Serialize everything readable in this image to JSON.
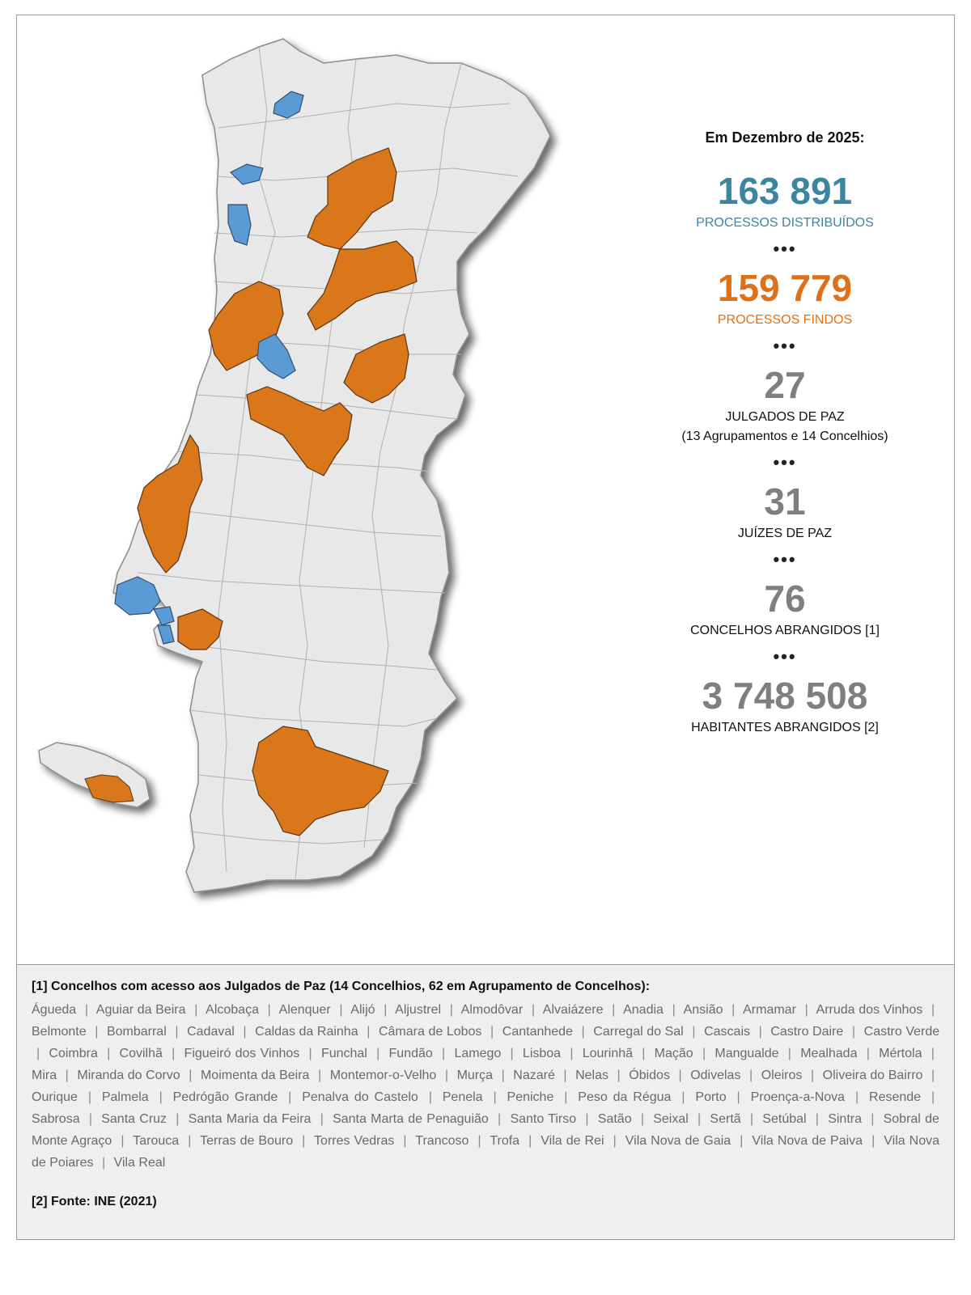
{
  "stats": {
    "intro": "Em Dezembro de 2025:",
    "items": [
      {
        "value": "163 891",
        "label": "PROCESSOS DISTRIBUÍDOS",
        "color": "#3b85a1"
      },
      {
        "value": "159 779",
        "label": "PROCESSOS FINDOS",
        "color": "#e07018"
      },
      {
        "value": "27",
        "label": "JULGADOS DE PAZ",
        "sublabel": "(13 Agrupamentos e 14 Concelhios)",
        "color": "#7f7f7f"
      },
      {
        "value": "31",
        "label": "JUÍZES DE PAZ",
        "color": "#7f7f7f"
      },
      {
        "value": "76",
        "label": "CONCELHOS ABRANGIDOS [1]",
        "color": "#7f7f7f"
      },
      {
        "value": "3 748 508",
        "label": "HABITANTES ABRANGIDOS [2]",
        "color": "#7f7f7f"
      }
    ],
    "separator": "•••"
  },
  "map": {
    "colors": {
      "orange": "#d9771a",
      "blue": "#5b9bd5",
      "base": "#e8e8e8",
      "border": "#8c8c8c"
    }
  },
  "notes": {
    "note1_title": "[1] Concelhos com acesso aos Julgados de Paz (14 Concelhios, 62 em Agrupamento de Concelhos):",
    "concelhos": [
      "Águeda",
      "Aguiar da Beira",
      "Alcobaça",
      "Alenquer",
      "Alijó",
      "Aljustrel",
      "Almodôvar",
      "Alvaiázere",
      "Anadia",
      "Ansião",
      "Armamar",
      "Arruda dos Vinhos",
      "Belmonte",
      "Bombarral",
      "Cadaval",
      "Caldas da Rainha",
      "Câmara de Lobos",
      "Cantanhede",
      "Carregal do Sal",
      "Cascais",
      "Castro Daire",
      "Castro Verde",
      "Coimbra",
      "Covilhã",
      "Figueiró dos Vinhos",
      "Funchal",
      "Fundão",
      "Lamego",
      "Lisboa",
      "Lourinhã",
      "Mação",
      "Mangualde",
      "Mealhada",
      "Mértola",
      "Mira",
      "Miranda do Corvo",
      "Moimenta da Beira",
      "Montemor-o-Velho",
      "Murça",
      "Nazaré",
      "Nelas",
      "Óbidos",
      "Odivelas",
      "Oleiros",
      "Oliveira do Bairro",
      "Ourique",
      "Palmela",
      "Pedrógão Grande",
      "Penalva do Castelo",
      "Penela",
      "Peniche",
      "Peso da Régua",
      "Porto",
      "Proença-a-Nova",
      "Resende",
      "Sabrosa",
      "Santa Cruz",
      "Santa Maria da Feira",
      "Santa Marta de Penaguião",
      "Santo Tirso",
      "Satão",
      "Seixal",
      "Sertã",
      "Setúbal",
      "Sintra",
      "Sobral de Monte Agraço",
      "Tarouca",
      "Terras de Bouro",
      "Torres Vedras",
      "Trancoso",
      "Trofa",
      "Vila de Rei",
      "Vila Nova de Gaia",
      "Vila Nova de Paiva",
      "Vila Nova de Poiares",
      "Vila Real"
    ],
    "note2": "[2] Fonte: INE (2021)"
  }
}
